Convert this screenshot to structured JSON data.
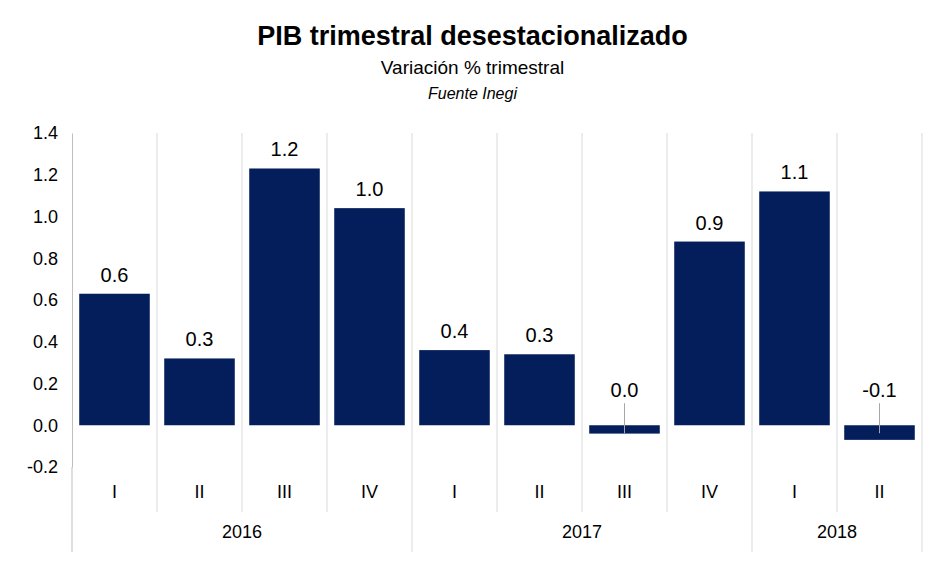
{
  "chart_data": {
    "type": "bar",
    "title": "PIB trimestral desestacionalizado",
    "subtitle": "Variación % trimestral",
    "source": "Fuente Inegi",
    "categories": [
      "I",
      "II",
      "III",
      "IV",
      "I",
      "II",
      "III",
      "IV",
      "I",
      "II"
    ],
    "groups": [
      {
        "label": "2016",
        "span": 4
      },
      {
        "label": "2017",
        "span": 4
      },
      {
        "label": "2018",
        "span": 2
      }
    ],
    "values": [
      0.63,
      0.32,
      1.23,
      1.04,
      0.36,
      0.34,
      -0.04,
      0.88,
      1.12,
      -0.07
    ],
    "value_labels": [
      "0.6",
      "0.3",
      "1.2",
      "1.0",
      "0.4",
      "0.3",
      "0.0",
      "0.9",
      "1.1",
      "-0.1"
    ],
    "color": "#041e5b",
    "ylim": [
      -0.2,
      1.4
    ],
    "yticks": [
      -0.2,
      {
        "value": 0,
        "label": "0.0"
      },
      0.2,
      0.4,
      0.6,
      0.8,
      {
        "value": 1,
        "label": "1.0"
      },
      1.2,
      1.4
    ],
    "grid": "x",
    "data_labels": true
  }
}
